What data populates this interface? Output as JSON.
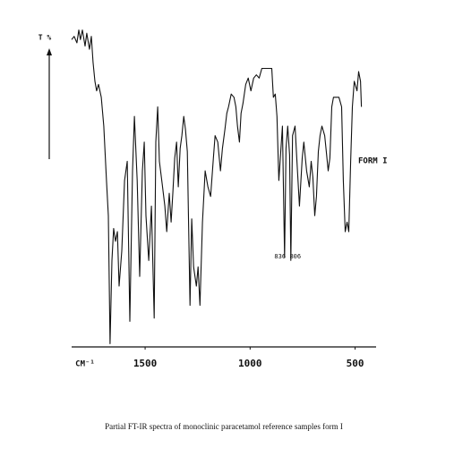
{
  "chart_data": {
    "type": "line",
    "title": "Partial FT-IR spectra of monoclinic paracetamol reference samples form I",
    "xlabel": "CM⁻¹",
    "ylabel": "T %",
    "series_label": "FORM I",
    "color": "#111111",
    "x": [
      1850,
      1838,
      1825,
      1816,
      1808,
      1799,
      1786,
      1778,
      1765,
      1756,
      1748,
      1739,
      1731,
      1722,
      1709,
      1697,
      1684,
      1675,
      1667,
      1658,
      1650,
      1641,
      1632,
      1624,
      1611,
      1598,
      1585,
      1573,
      1560,
      1551,
      1538,
      1526,
      1513,
      1504,
      1496,
      1483,
      1470,
      1457,
      1449,
      1440,
      1432,
      1419,
      1406,
      1397,
      1385,
      1376,
      1368,
      1359,
      1350,
      1342,
      1333,
      1325,
      1316,
      1308,
      1299,
      1286,
      1278,
      1269,
      1256,
      1248,
      1239,
      1227,
      1214,
      1201,
      1188,
      1175,
      1167,
      1154,
      1141,
      1132,
      1120,
      1111,
      1103,
      1090,
      1077,
      1068,
      1060,
      1051,
      1043,
      1034,
      1021,
      1009,
      996,
      983,
      970,
      957,
      944,
      927,
      910,
      897,
      889,
      880,
      872,
      863,
      846,
      836,
      829,
      821,
      812,
      806,
      798,
      786,
      778,
      765,
      752,
      744,
      731,
      718,
      709,
      701,
      692,
      684,
      675,
      667,
      658,
      645,
      637,
      628,
      620,
      611,
      603,
      590,
      577,
      564,
      556,
      547,
      538,
      530,
      521,
      513,
      504,
      491,
      483,
      474,
      470
    ],
    "values": [
      96,
      97,
      95,
      99,
      96,
      99,
      94,
      98,
      93,
      97,
      89,
      83,
      80,
      82,
      78,
      69,
      52,
      41,
      1,
      27,
      37,
      33,
      36,
      19,
      30,
      52,
      58,
      8,
      55,
      72,
      52,
      22,
      55,
      64,
      41,
      27,
      44,
      9,
      64,
      75,
      58,
      51,
      44,
      36,
      48,
      39,
      48,
      59,
      64,
      50,
      62,
      66,
      72,
      68,
      61,
      13,
      40,
      25,
      19,
      25,
      13,
      39,
      55,
      50,
      47,
      59,
      66,
      64,
      55,
      62,
      68,
      73,
      75,
      79,
      78,
      75,
      69,
      64,
      73,
      76,
      82,
      84,
      80,
      84,
      85,
      84,
      87,
      87,
      87,
      87,
      78,
      79,
      72,
      52,
      69,
      28,
      62,
      69,
      60,
      27,
      66,
      69,
      59,
      44,
      59,
      64,
      55,
      50,
      58,
      53,
      41,
      47,
      61,
      66,
      69,
      66,
      61,
      55,
      59,
      75,
      78,
      78,
      78,
      75,
      52,
      36,
      39,
      36,
      58,
      75,
      83,
      80,
      86,
      83,
      75
    ],
    "xlim": [
      1850,
      400
    ],
    "ylim": [
      0,
      100
    ],
    "xticks": [
      1500,
      1000,
      500
    ],
    "annotations": [
      {
        "label": "836",
        "x": 836
      },
      {
        "label": "806",
        "x": 806
      }
    ]
  }
}
